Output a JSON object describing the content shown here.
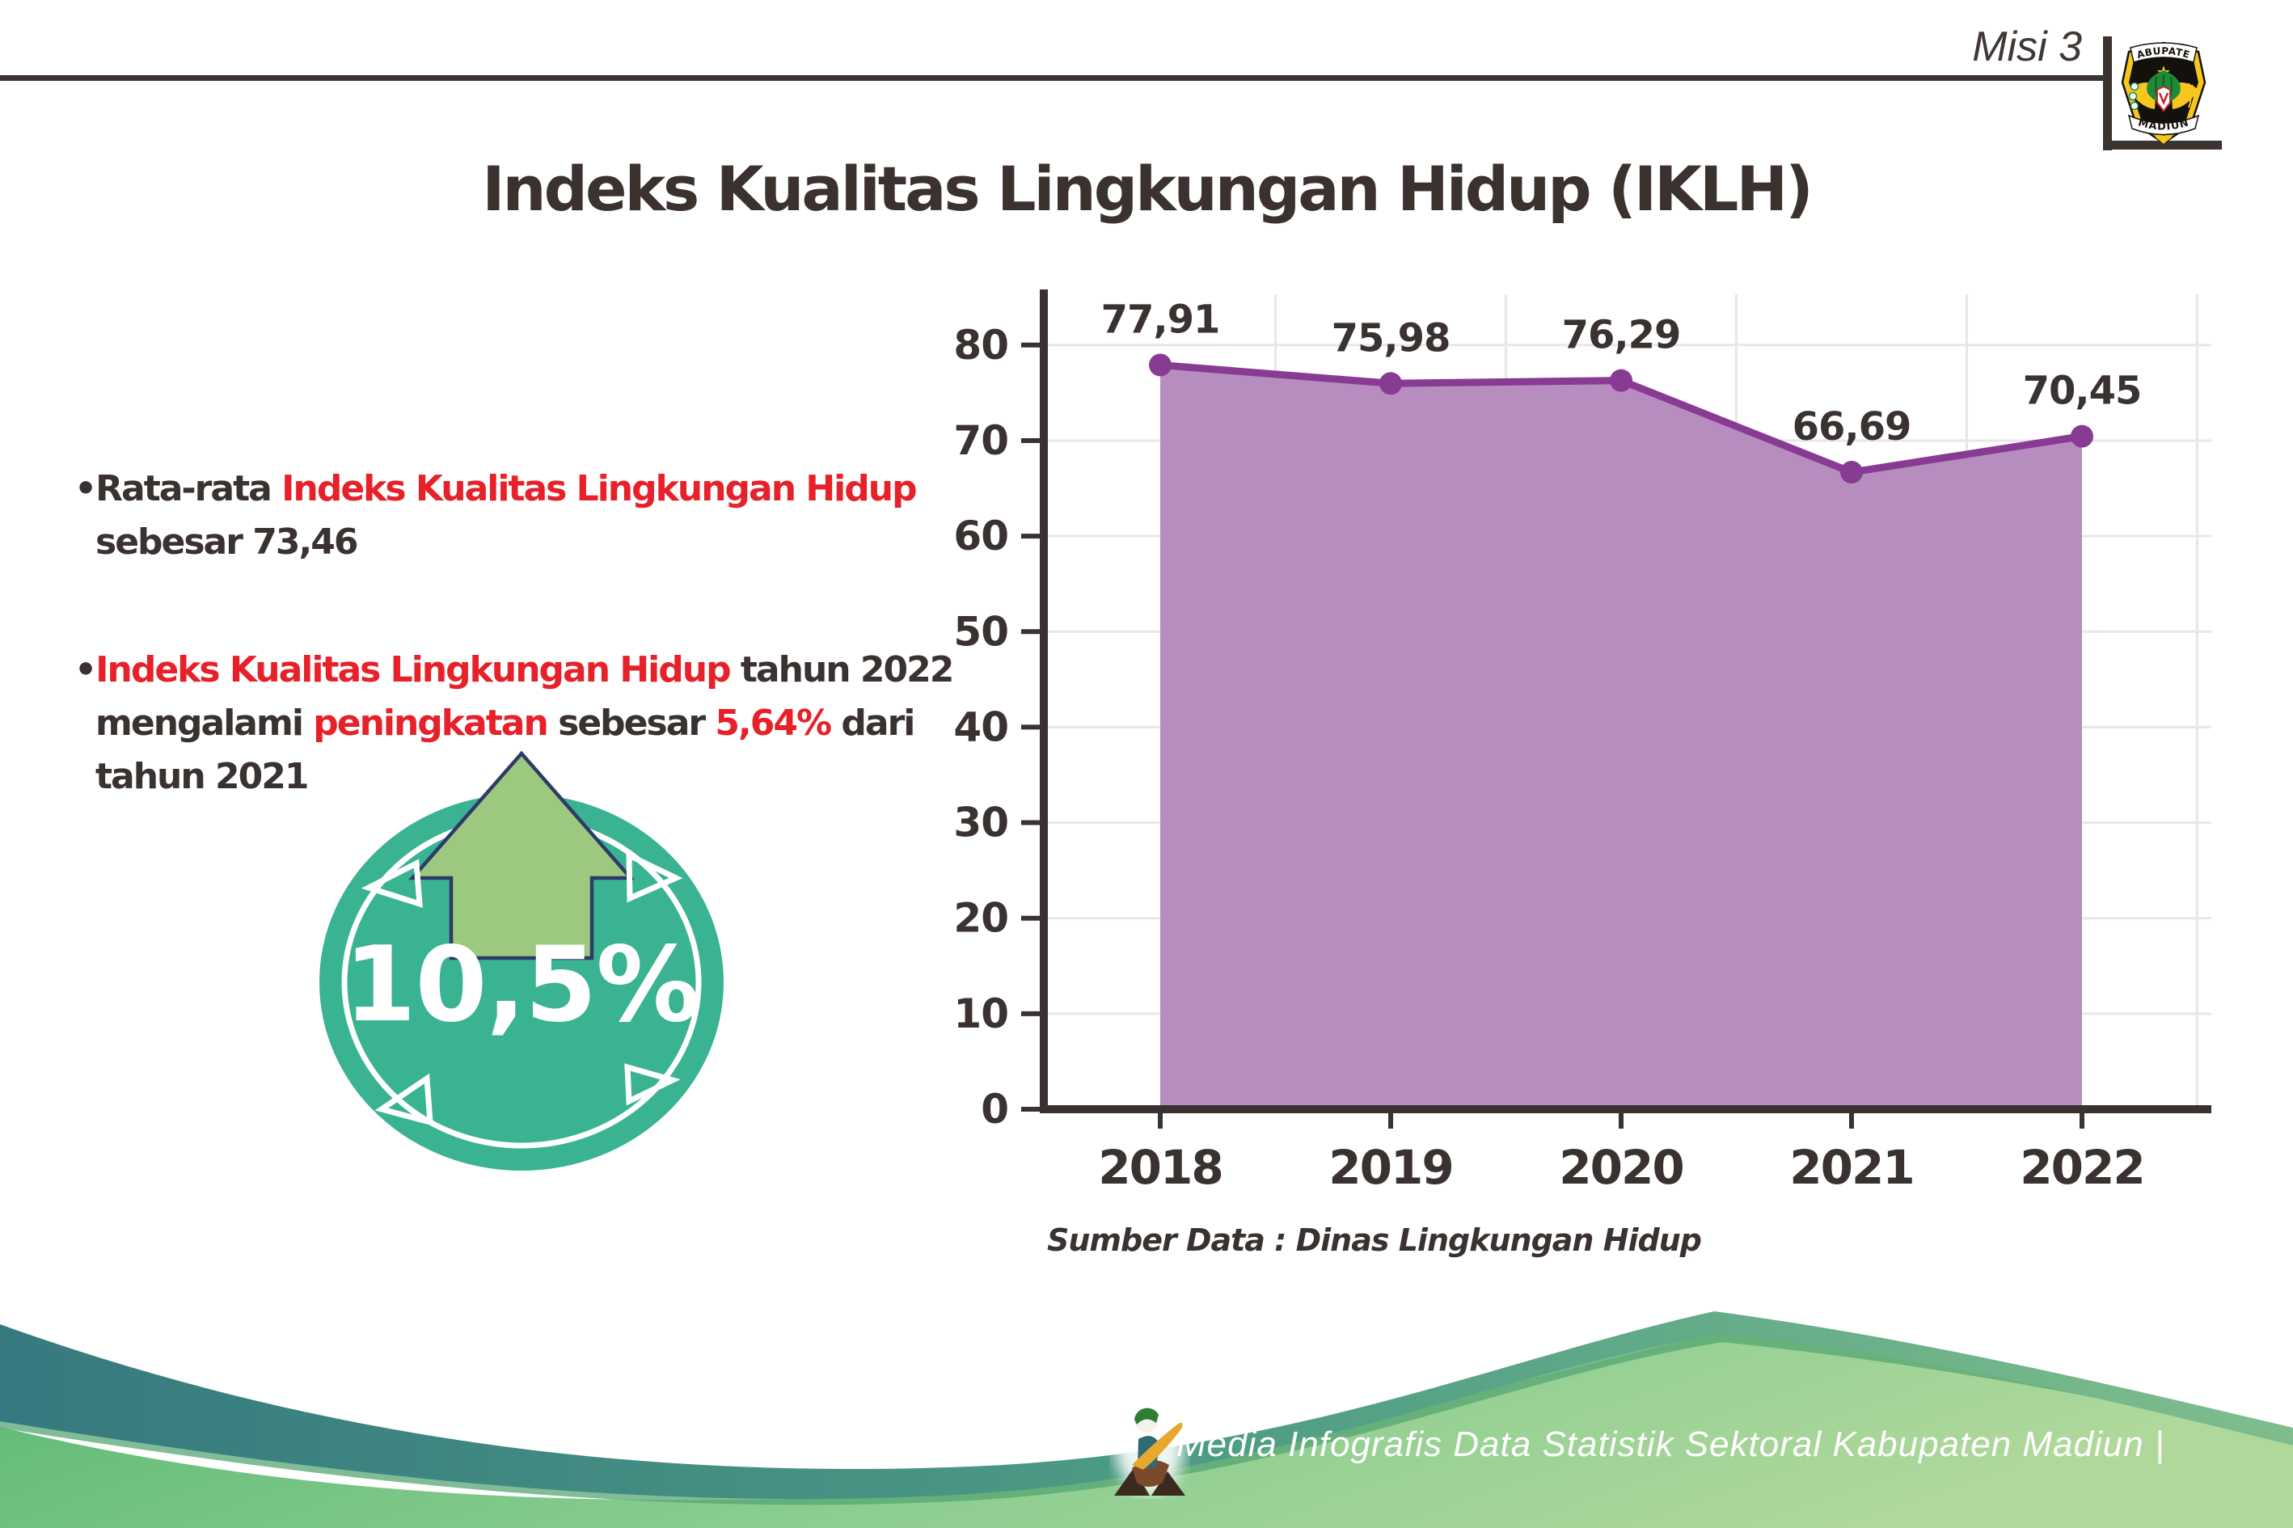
{
  "header": {
    "misi_label": "Misi 3",
    "title": "Indeks Kualitas Lingkungan Hidup (IKLH)",
    "logo_top_text": "KABUPATEN",
    "logo_bottom_text": "MADIUN"
  },
  "bullets": [
    {
      "marker": "•",
      "lines": [
        [
          {
            "text": "Rata-rata ",
            "red": false
          },
          {
            "text": "Indeks Kualitas Lingkungan Hidup",
            "red": true
          }
        ],
        [
          {
            "text": "sebesar 73,46",
            "red": false
          }
        ]
      ]
    },
    {
      "marker": "•",
      "lines": [
        [
          {
            "text": "Indeks Kualitas Lingkungan Hidup",
            "red": true
          },
          {
            "text": " tahun 2022",
            "red": false
          }
        ],
        [
          {
            "text": "mengalami ",
            "red": false
          },
          {
            "text": "peningkatan",
            "red": true
          },
          {
            "text": " sebesar ",
            "red": false
          },
          {
            "text": "5,64%",
            "red": true
          },
          {
            "text": " dari",
            "red": false
          }
        ],
        [
          {
            "text": "tahun 2021",
            "red": false
          }
        ]
      ]
    }
  ],
  "badge": {
    "value": "10,5%"
  },
  "chart_data": {
    "type": "area",
    "title": "",
    "categories": [
      "2018",
      "2019",
      "2020",
      "2021",
      "2022"
    ],
    "values": [
      77.91,
      75.98,
      76.29,
      66.69,
      70.45
    ],
    "labels": [
      "77,91",
      "75,98",
      "76,29",
      "66,69",
      "70,45"
    ],
    "xlabel": "",
    "ylabel": "",
    "ylim": [
      0,
      85
    ],
    "yticks": [
      0,
      10,
      20,
      30,
      40,
      50,
      60,
      70,
      80
    ],
    "grid": true,
    "legend": "none",
    "source_note": "Sumber Data : Dinas Lingkungan Hidup"
  },
  "footer": {
    "credit": "Media Infografis Data Statistik Sektoral Kabupaten Madiun |"
  },
  "colors": {
    "accent_red": "#e62129",
    "text_dark": "#3a3230",
    "chart_fill": "#b78dc0",
    "chart_line": "#883b92",
    "gridline": "#e8e6e6",
    "badge_teal": "#3ab393",
    "arrow_green": "#9cc87f",
    "footer_teal": "#36797f",
    "footer_green": "#63bd78"
  }
}
